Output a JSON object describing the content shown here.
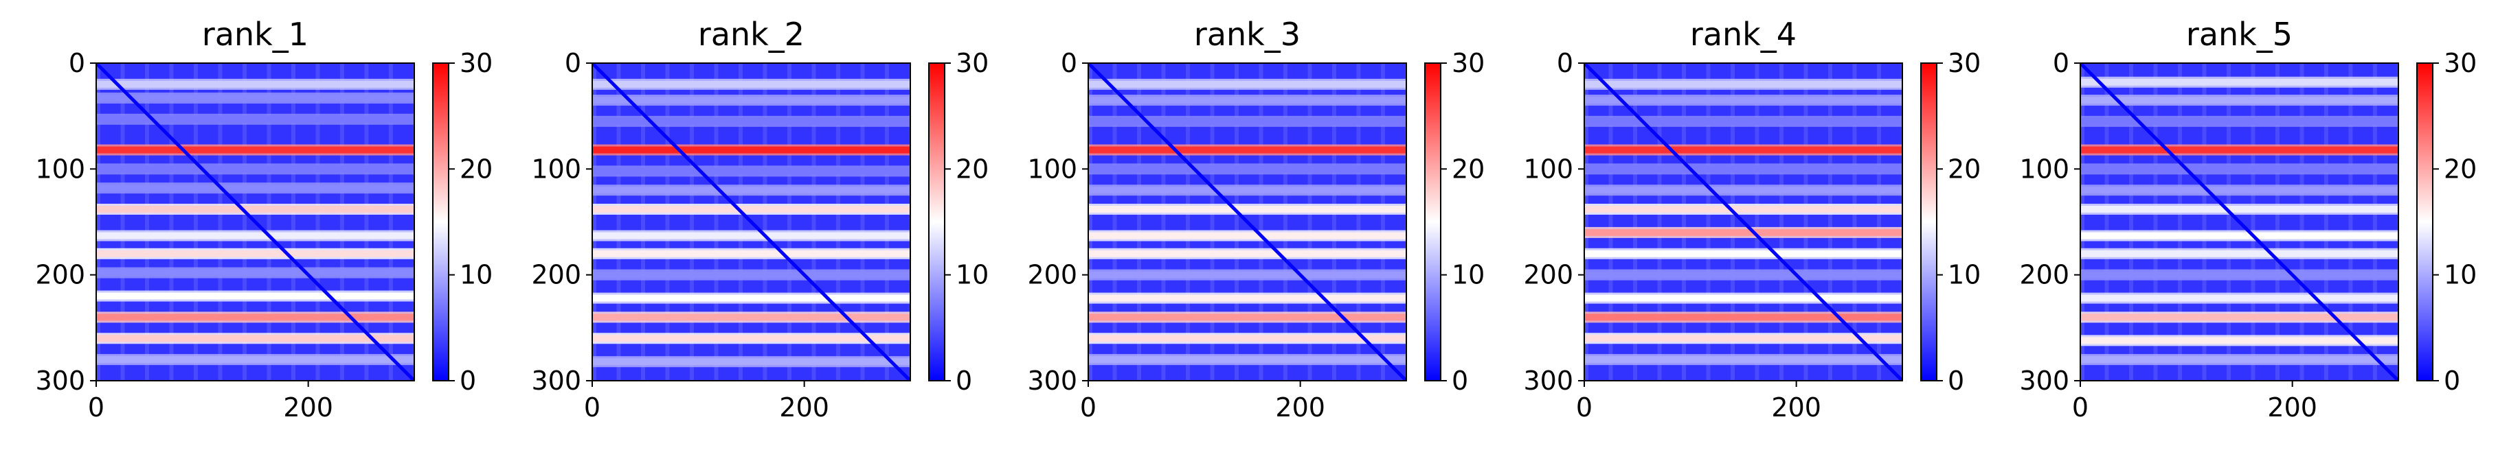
{
  "chart_data": {
    "type": "heatmap",
    "colormap": {
      "name": "bwr",
      "colors": [
        "#0000ff",
        "#ffffff",
        "#ff0000"
      ],
      "vmin": 0,
      "vmax": 30,
      "ticks": [
        0,
        10,
        20,
        30
      ],
      "tick_labels": [
        "0",
        "10",
        "20",
        "30"
      ]
    },
    "x_range": [
      0,
      300
    ],
    "y_range": [
      300,
      0
    ],
    "x_ticks": [
      0,
      200
    ],
    "x_tick_labels": [
      "0",
      "200"
    ],
    "y_ticks": [
      0,
      100,
      200,
      300
    ],
    "y_tick_labels": [
      "0",
      "100",
      "200",
      "300"
    ],
    "diagonal": {
      "from": [
        0,
        0
      ],
      "to": [
        300,
        300
      ],
      "level": 0
    },
    "panels": [
      {
        "title": "rank_1",
        "background_level": 3,
        "bands": [
          {
            "y": 20,
            "level": 12
          },
          {
            "y": 33,
            "level": 8
          },
          {
            "y": 53,
            "level": 7
          },
          {
            "y": 82,
            "level": 27
          },
          {
            "y": 100,
            "level": 7
          },
          {
            "y": 118,
            "level": 8
          },
          {
            "y": 138,
            "level": 18
          },
          {
            "y": 163,
            "level": 14
          },
          {
            "y": 180,
            "level": 17
          },
          {
            "y": 198,
            "level": 8
          },
          {
            "y": 220,
            "level": 15
          },
          {
            "y": 240,
            "level": 22
          },
          {
            "y": 260,
            "level": 18
          },
          {
            "y": 280,
            "level": 10
          }
        ]
      },
      {
        "title": "rank_2",
        "background_level": 3,
        "bands": [
          {
            "y": 20,
            "level": 12
          },
          {
            "y": 35,
            "level": 9
          },
          {
            "y": 55,
            "level": 7
          },
          {
            "y": 82,
            "level": 28
          },
          {
            "y": 102,
            "level": 7
          },
          {
            "y": 120,
            "level": 9
          },
          {
            "y": 138,
            "level": 17
          },
          {
            "y": 163,
            "level": 14
          },
          {
            "y": 180,
            "level": 16
          },
          {
            "y": 200,
            "level": 8
          },
          {
            "y": 222,
            "level": 15
          },
          {
            "y": 240,
            "level": 20
          },
          {
            "y": 260,
            "level": 17
          },
          {
            "y": 282,
            "level": 10
          }
        ]
      },
      {
        "title": "rank_3",
        "background_level": 3,
        "bands": [
          {
            "y": 20,
            "level": 12
          },
          {
            "y": 35,
            "level": 9
          },
          {
            "y": 55,
            "level": 7
          },
          {
            "y": 82,
            "level": 27
          },
          {
            "y": 100,
            "level": 7
          },
          {
            "y": 120,
            "level": 9
          },
          {
            "y": 138,
            "level": 16
          },
          {
            "y": 163,
            "level": 16
          },
          {
            "y": 180,
            "level": 16
          },
          {
            "y": 200,
            "level": 9
          },
          {
            "y": 222,
            "level": 16
          },
          {
            "y": 240,
            "level": 21
          },
          {
            "y": 260,
            "level": 17
          },
          {
            "y": 280,
            "level": 10
          }
        ]
      },
      {
        "title": "rank_4",
        "background_level": 3,
        "bands": [
          {
            "y": 20,
            "level": 12
          },
          {
            "y": 35,
            "level": 9
          },
          {
            "y": 55,
            "level": 7
          },
          {
            "y": 82,
            "level": 27
          },
          {
            "y": 100,
            "level": 7
          },
          {
            "y": 120,
            "level": 9
          },
          {
            "y": 138,
            "level": 17
          },
          {
            "y": 160,
            "level": 21
          },
          {
            "y": 180,
            "level": 15
          },
          {
            "y": 200,
            "level": 8
          },
          {
            "y": 222,
            "level": 15
          },
          {
            "y": 240,
            "level": 23
          },
          {
            "y": 260,
            "level": 17
          },
          {
            "y": 280,
            "level": 10
          }
        ]
      },
      {
        "title": "rank_5",
        "background_level": 3,
        "bands": [
          {
            "y": 18,
            "level": 13
          },
          {
            "y": 35,
            "level": 10
          },
          {
            "y": 55,
            "level": 7
          },
          {
            "y": 82,
            "level": 27
          },
          {
            "y": 100,
            "level": 7
          },
          {
            "y": 120,
            "level": 9
          },
          {
            "y": 138,
            "level": 14
          },
          {
            "y": 163,
            "level": 15
          },
          {
            "y": 180,
            "level": 14
          },
          {
            "y": 200,
            "level": 8
          },
          {
            "y": 222,
            "level": 14
          },
          {
            "y": 240,
            "level": 19
          },
          {
            "y": 262,
            "level": 16
          },
          {
            "y": 280,
            "level": 10
          }
        ]
      }
    ]
  }
}
